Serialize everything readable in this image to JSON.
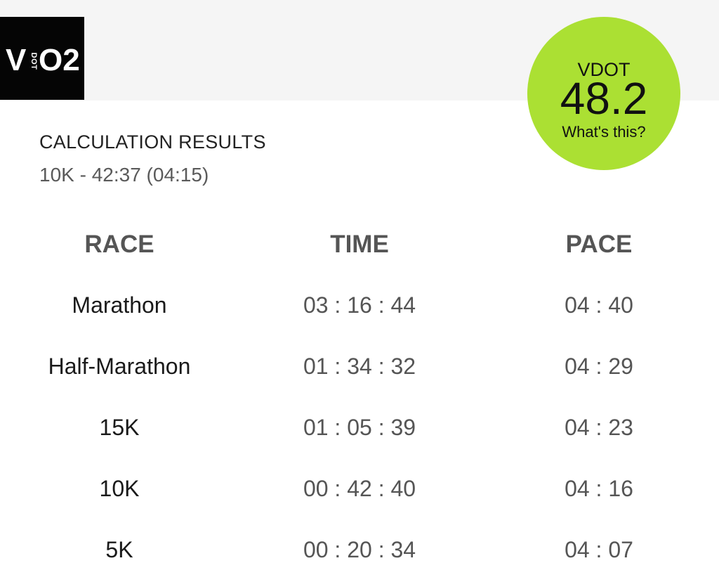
{
  "logo": {
    "v": "V",
    "dot": "DOT",
    "o2": "O2"
  },
  "badge": {
    "label": "VDOT",
    "value": "48.2",
    "link": "What's this?",
    "color": "#abe033"
  },
  "results": {
    "heading": "CALCULATION RESULTS",
    "subtitle": "10K - 42:37 (04:15)"
  },
  "table": {
    "headers": [
      "RACE",
      "TIME",
      "PACE"
    ],
    "rows": [
      {
        "race": "Marathon",
        "time": "03 : 16 : 44",
        "pace": "04 : 40"
      },
      {
        "race": "Half-Marathon",
        "time": "01 : 34 : 32",
        "pace": "04 : 29"
      },
      {
        "race": "15K",
        "time": "01 : 05 : 39",
        "pace": "04 : 23"
      },
      {
        "race": "10K",
        "time": "00 : 42 : 40",
        "pace": "04 : 16"
      },
      {
        "race": "5K",
        "time": "00 : 20 : 34",
        "pace": "04 : 07"
      }
    ]
  }
}
